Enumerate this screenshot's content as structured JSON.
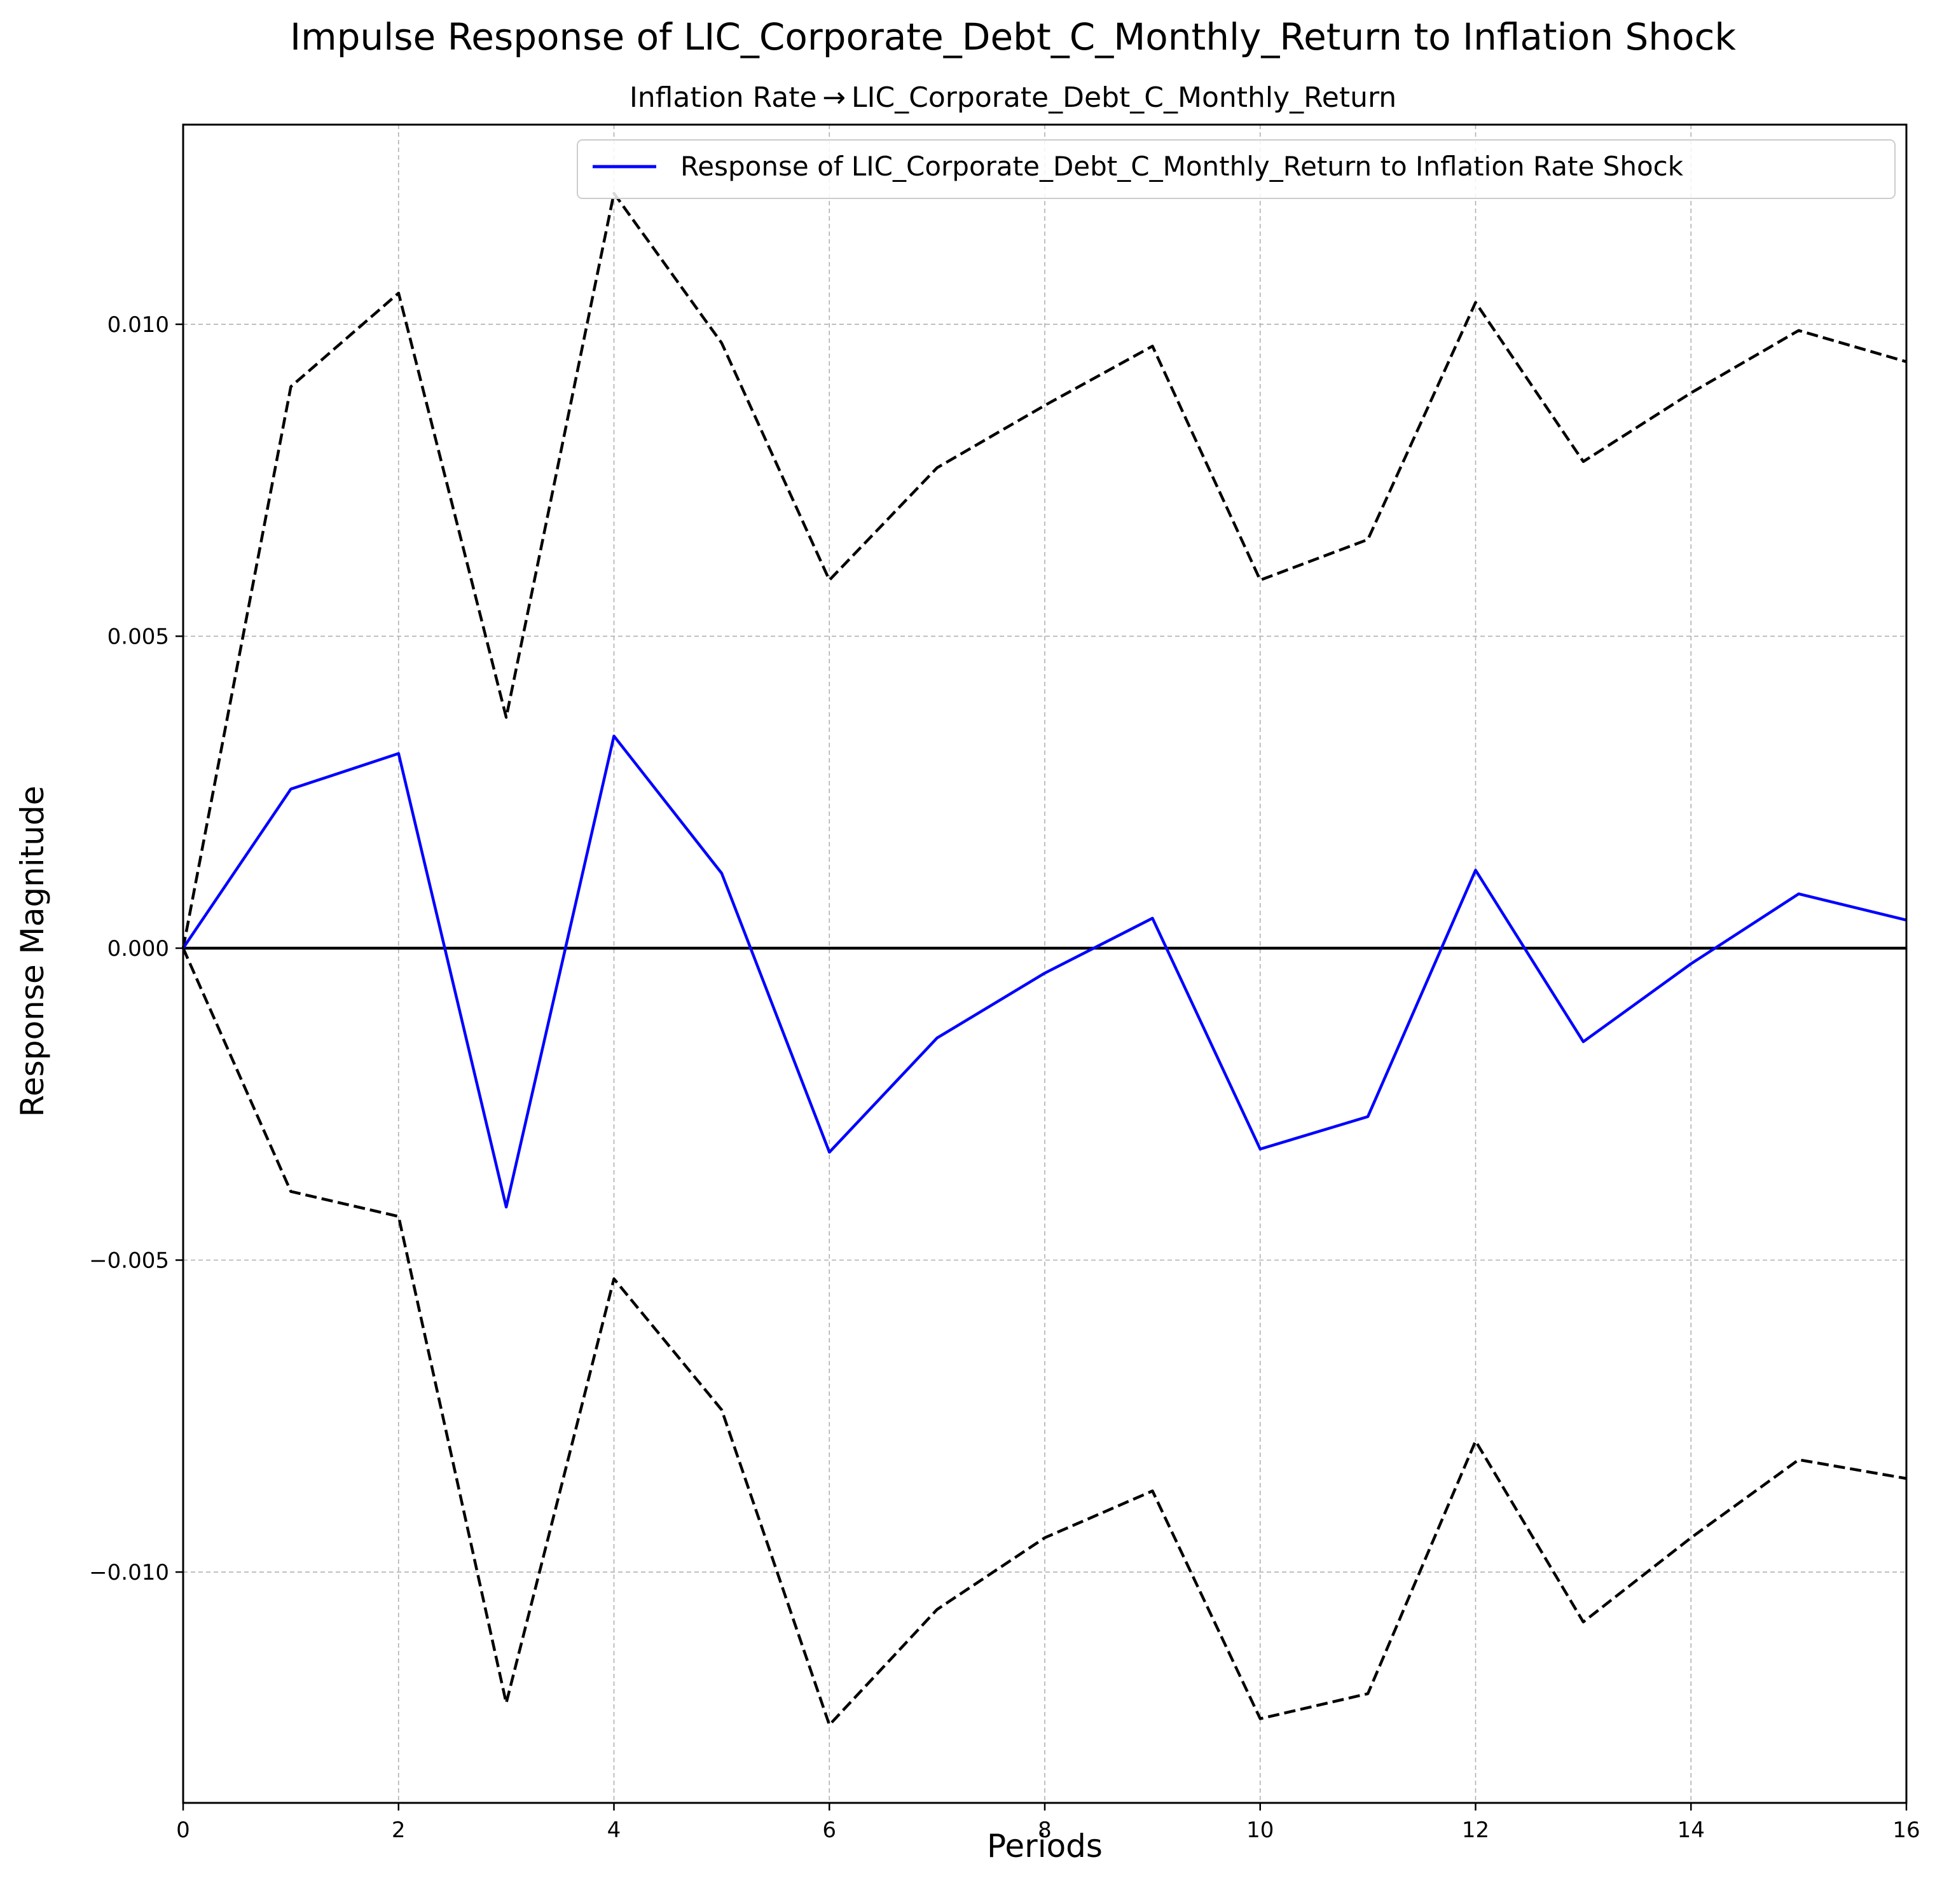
{
  "chart_data": {
    "type": "line",
    "title": "Impulse Response of LIC_Corporate_Debt_C_Monthly_Return to Inflation Shock",
    "subtitle": "Inflation Rate → LIC_Corporate_Debt_C_Monthly_Return",
    "xlabel": "Periods",
    "ylabel": "Response Magnitude",
    "xlim": [
      0,
      16
    ],
    "ylim": [
      -0.0137,
      0.0132
    ],
    "xticks": [
      0,
      2,
      4,
      6,
      8,
      10,
      12,
      14,
      16
    ],
    "xtick_labels": [
      "0",
      "2",
      "4",
      "6",
      "8",
      "10",
      "12",
      "14",
      "16"
    ],
    "yticks": [
      -0.01,
      -0.005,
      0.0,
      0.005,
      0.01
    ],
    "ytick_labels": [
      "−0.010",
      "−0.005",
      "0.000",
      "0.005",
      "0.010"
    ],
    "grid": true,
    "legend_position": "top-right",
    "x": [
      0,
      1,
      2,
      3,
      4,
      5,
      6,
      7,
      8,
      9,
      10,
      11,
      12,
      13,
      14,
      15,
      16
    ],
    "series": [
      {
        "name": "Response of LIC_Corporate_Debt_C_Monthly_Return to Inflation Rate Shock",
        "role": "response",
        "color": "#0000ff",
        "style": "solid",
        "values": [
          0.0,
          0.00255,
          0.00312,
          -0.00415,
          0.0034,
          0.0012,
          -0.00327,
          -0.00144,
          -0.0004,
          0.00048,
          -0.00322,
          -0.0027,
          0.00125,
          -0.0015,
          -0.00025,
          0.00087,
          0.00045
        ]
      },
      {
        "role": "upper-band",
        "color": "#000000",
        "style": "dashed",
        "values": [
          0.0,
          0.009,
          0.0105,
          0.0037,
          0.0121,
          0.0097,
          0.0059,
          0.0077,
          0.0087,
          0.00965,
          0.0059,
          0.00655,
          0.01035,
          0.0078,
          0.0089,
          0.0099,
          0.0094
        ]
      },
      {
        "role": "lower-band",
        "color": "#000000",
        "style": "dashed",
        "values": [
          0.0,
          -0.0039,
          -0.0043,
          -0.0121,
          -0.0053,
          -0.0074,
          -0.01245,
          -0.0106,
          -0.00945,
          -0.0087,
          -0.01235,
          -0.01195,
          -0.0079,
          -0.0108,
          -0.00945,
          -0.0082,
          -0.0085
        ]
      }
    ],
    "zero_line_color": "#000000"
  }
}
